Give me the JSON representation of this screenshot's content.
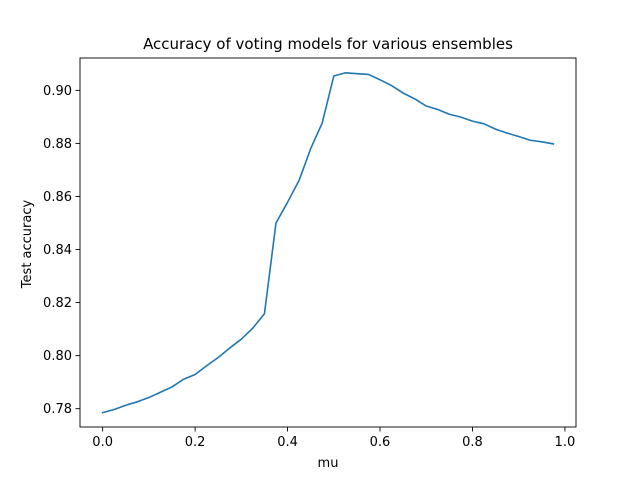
{
  "chart_data": {
    "type": "line",
    "title": "Accuracy of voting models for various ensembles",
    "xlabel": "mu",
    "ylabel": "Test accuracy",
    "xlim": [
      -0.049,
      1.024
    ],
    "ylim": [
      0.7731,
      0.9122
    ],
    "xticks": [
      0.0,
      0.2,
      0.4,
      0.6,
      0.8,
      1.0
    ],
    "xtick_labels": [
      "0.0",
      "0.2",
      "0.4",
      "0.6",
      "0.8",
      "1.0"
    ],
    "yticks": [
      0.78,
      0.8,
      0.82,
      0.84,
      0.86,
      0.88,
      0.9
    ],
    "ytick_labels": [
      "0.78",
      "0.80",
      "0.82",
      "0.84",
      "0.86",
      "0.88",
      "0.90"
    ],
    "grid": false,
    "line_color": "#1f77b4",
    "series": [
      {
        "x": [
          0.0,
          0.025,
          0.05,
          0.075,
          0.1,
          0.125,
          0.15,
          0.175,
          0.2,
          0.225,
          0.25,
          0.275,
          0.3,
          0.325,
          0.35,
          0.375,
          0.4,
          0.425,
          0.45,
          0.475,
          0.5,
          0.525,
          0.55,
          0.575,
          0.6,
          0.625,
          0.65,
          0.675,
          0.7,
          0.725,
          0.75,
          0.775,
          0.8,
          0.825,
          0.85,
          0.875,
          0.9,
          0.925,
          0.95,
          0.975
        ],
        "values": [
          0.7785,
          0.7797,
          0.7813,
          0.7826,
          0.7842,
          0.7862,
          0.7882,
          0.7911,
          0.7929,
          0.7962,
          0.7993,
          0.8029,
          0.8062,
          0.8104,
          0.8158,
          0.85,
          0.8578,
          0.8661,
          0.878,
          0.8877,
          0.9054,
          0.9066,
          0.9063,
          0.906,
          0.904,
          0.9018,
          0.899,
          0.8968,
          0.8941,
          0.8928,
          0.891,
          0.8899,
          0.8884,
          0.8874,
          0.8854,
          0.8839,
          0.8826,
          0.8812,
          0.8806,
          0.8798
        ]
      }
    ]
  }
}
